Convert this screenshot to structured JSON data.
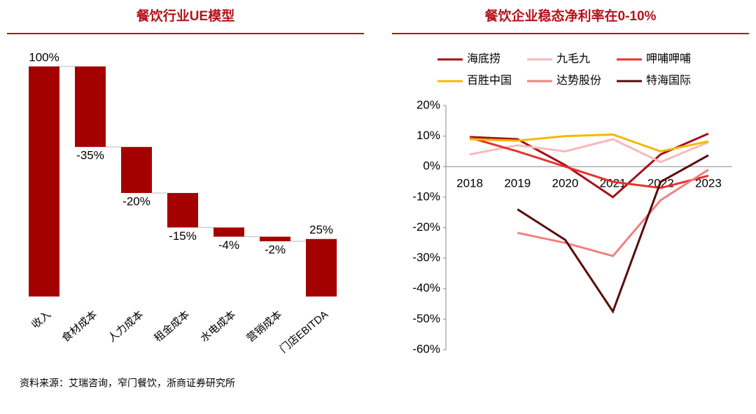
{
  "chart_data": [
    {
      "type": "waterfall",
      "title": "餐饮行业UE模型",
      "color": "#a50000",
      "categories": [
        "收入",
        "食材成本",
        "人力成本",
        "租金成本",
        "水电成本",
        "营销成本",
        "门店EBITDA"
      ],
      "values": [
        100,
        -35,
        -20,
        -15,
        -4,
        -2,
        25
      ],
      "value_labels": [
        "100%",
        "-35%",
        "-20%",
        "-15%",
        "-4%",
        "-2%",
        "25%"
      ]
    },
    {
      "type": "line",
      "title": "餐饮企业稳态净利率在0-10%",
      "categories": [
        "2018",
        "2019",
        "2020",
        "2021",
        "2022",
        "2023"
      ],
      "series": [
        {
          "name": "海底捞",
          "color": "#a50f15",
          "values": [
            9.7,
            9,
            0.5,
            -10,
            4,
            10.8
          ]
        },
        {
          "name": "九毛九",
          "color": "#f7b9b9",
          "values": [
            4,
            7,
            5,
            9,
            1.5,
            8
          ]
        },
        {
          "name": "呷哺呷哺",
          "color": "#e8302c",
          "values": [
            9.5,
            5,
            0,
            -5,
            -7,
            -3
          ]
        },
        {
          "name": "百胜中国",
          "color": "#f5b800",
          "values": [
            9,
            8.5,
            10,
            10.5,
            5,
            8.3
          ]
        },
        {
          "name": "达势股份",
          "color": "#f08080",
          "values": [
            null,
            -21.7,
            -25,
            -29.3,
            -11,
            -1
          ]
        },
        {
          "name": "特海国际",
          "color": "#5a0a0a",
          "values": [
            null,
            -14,
            -24,
            -47.5,
            -5,
            3.7
          ]
        }
      ],
      "ylim": [
        -60,
        20
      ],
      "yticks": [
        {
          "value": -60,
          "label": "-60%"
        },
        {
          "value": -50,
          "label": "-50%"
        },
        {
          "value": -40,
          "label": "-40%"
        },
        {
          "value": -30,
          "label": "-30%"
        },
        {
          "value": -20,
          "label": "-20%"
        },
        {
          "value": -10,
          "label": "-10%"
        },
        {
          "value": 0,
          "label": "0%"
        },
        {
          "value": 10,
          "label": "10%"
        },
        {
          "value": 20,
          "label": "20%"
        }
      ],
      "legend": "top"
    }
  ],
  "source": "资料来源：艾瑞咨询，窄门餐饮，浙商证券研究所"
}
